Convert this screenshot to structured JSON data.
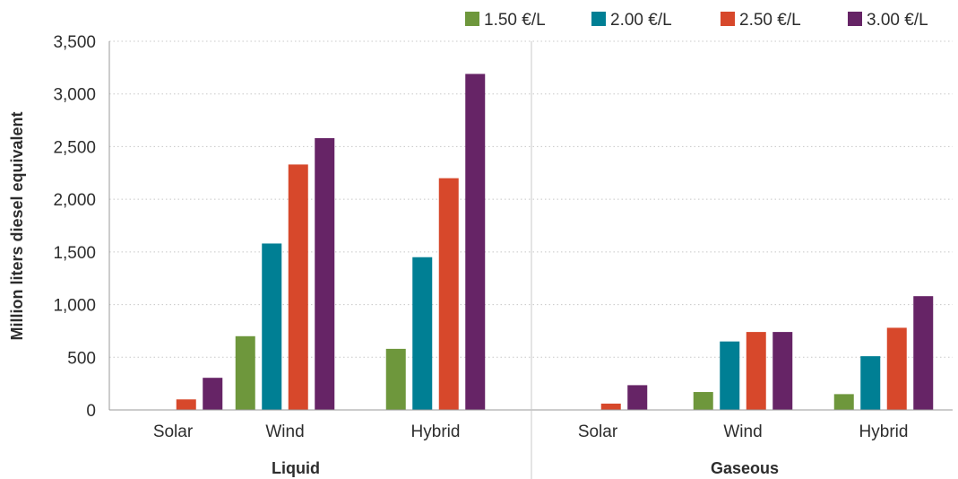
{
  "chart_data": {
    "type": "bar",
    "ylabel": "Million liters diesel equivalent",
    "ylim": [
      0,
      3500
    ],
    "yticks": [
      0,
      500,
      1000,
      1500,
      2000,
      2500,
      3000,
      3500
    ],
    "ytick_labels": [
      "0",
      "500",
      "1,000",
      "1,500",
      "2,000",
      "2,500",
      "3,000",
      "3,500"
    ],
    "grid": "horizontal-dotted",
    "legend_position": "top-right",
    "groups": [
      {
        "name": "Liquid",
        "categories": [
          "Solar",
          "Wind",
          "Hybrid"
        ]
      },
      {
        "name": "Gaseous",
        "categories": [
          "Solar",
          "Wind",
          "Hybrid"
        ]
      }
    ],
    "series": [
      {
        "name": "1.50 €/L",
        "color": "#6e973c",
        "values": [
          0,
          700,
          580,
          0,
          170,
          150
        ]
      },
      {
        "name": "2.00 €/L",
        "color": "#007f94",
        "values": [
          0,
          1580,
          1450,
          0,
          650,
          510
        ]
      },
      {
        "name": "2.50 €/L",
        "color": "#d7482b",
        "values": [
          100,
          2330,
          2200,
          60,
          740,
          780
        ]
      },
      {
        "name": "3.00 €/L",
        "color": "#662466",
        "values": [
          305,
          2580,
          3190,
          235,
          740,
          1080
        ]
      }
    ]
  }
}
